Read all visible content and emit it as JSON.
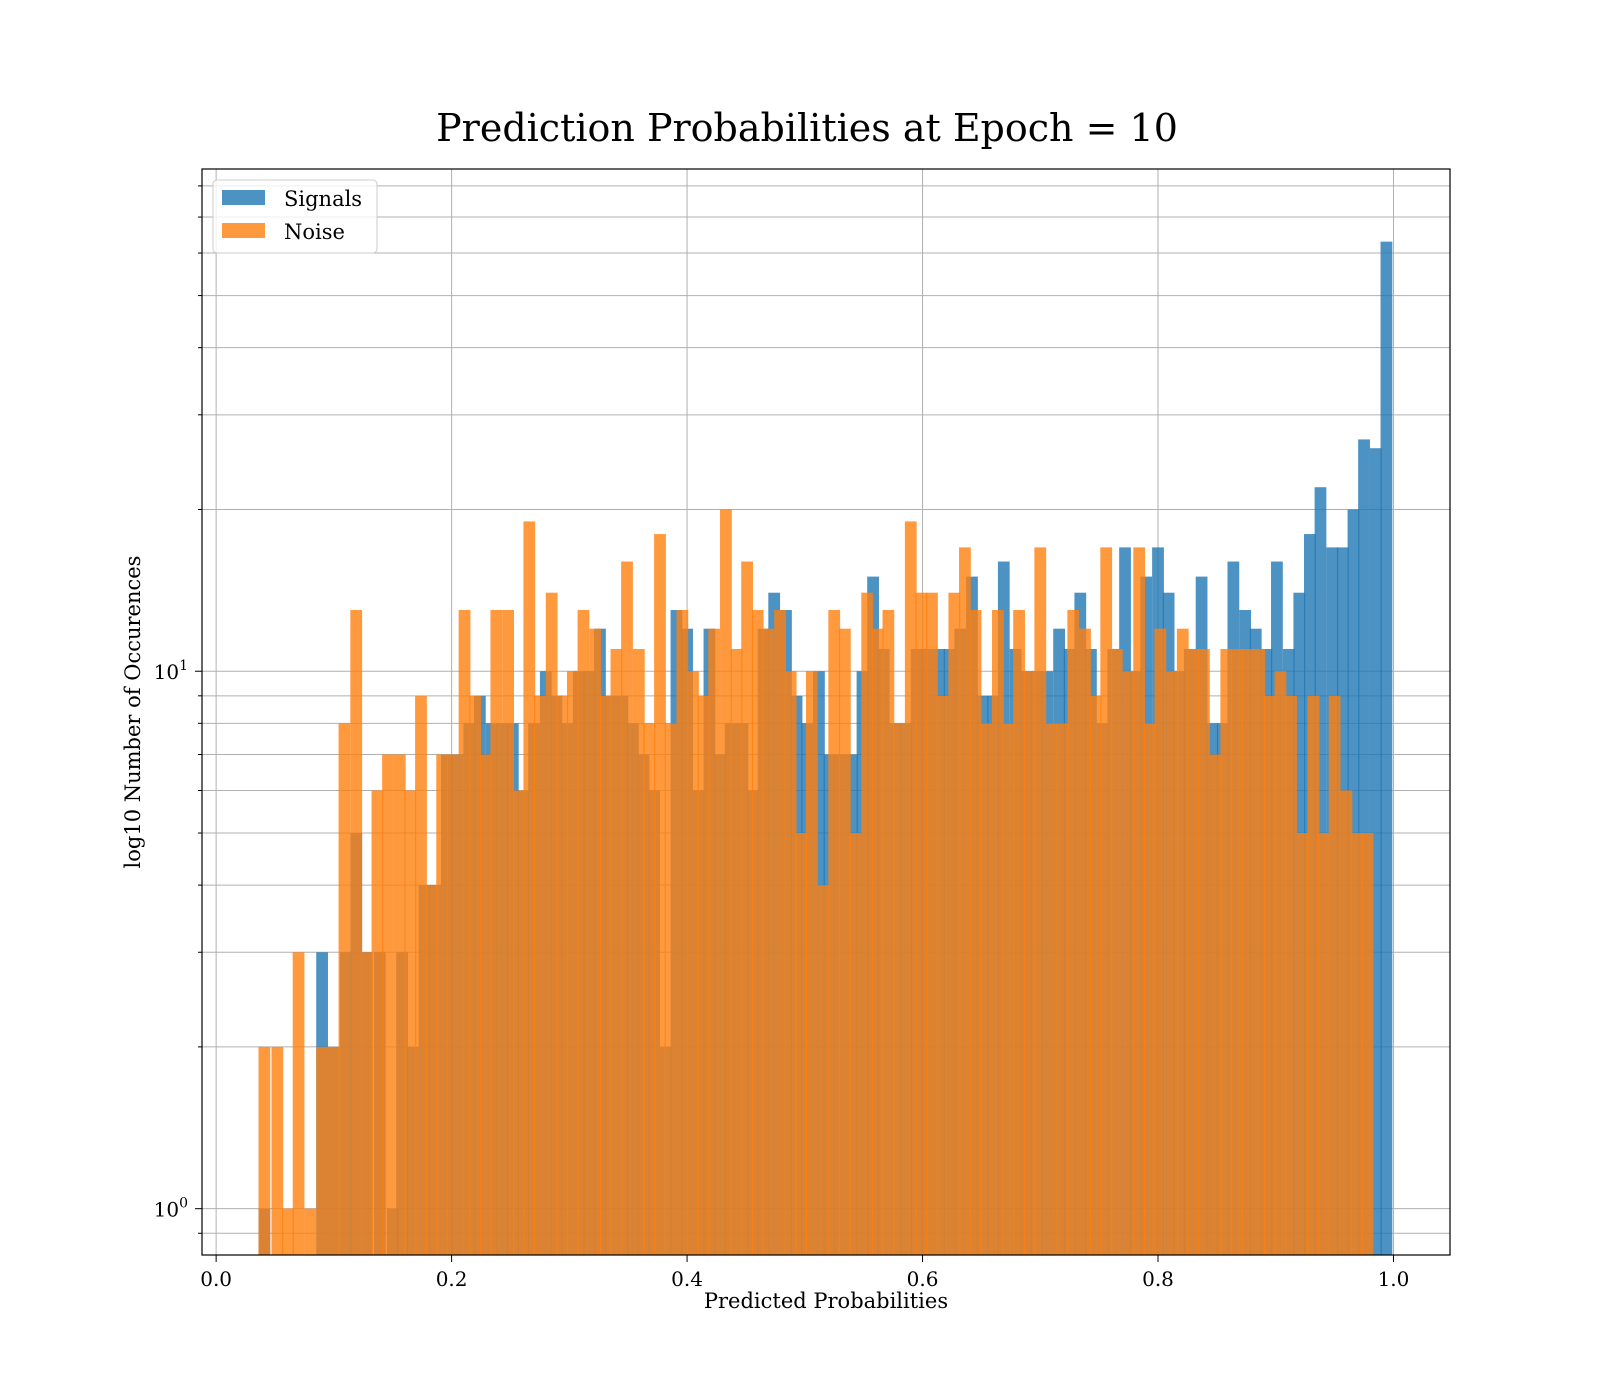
{
  "chart_data": {
    "type": "bar",
    "title": "Prediction Probabilities at Epoch = 10",
    "xlabel": "Predicted Probabilities",
    "ylabel": "log10 Number of Occurences",
    "xlim": [
      -0.012,
      1.048
    ],
    "ylim": [
      0.82,
      86
    ],
    "yscale": "log",
    "grid": true,
    "legend_position": "top-left",
    "bin_width": 0.01,
    "x_ticks": [
      "0.0",
      "0.2",
      "0.4",
      "0.6",
      "0.8",
      "1.0"
    ],
    "x_tick_values": [
      0.0,
      0.2,
      0.4,
      0.6,
      0.8,
      1.0
    ],
    "y_ticks": [
      {
        "value": 1,
        "base": "10",
        "exp": "0"
      },
      {
        "value": 10,
        "base": "10",
        "exp": "1"
      }
    ],
    "series": [
      {
        "name": "Signals",
        "color": "#1f77b4",
        "alpha": 0.8,
        "bins": [
          [
            0.036,
            1
          ],
          [
            0.085,
            3
          ],
          [
            0.095,
            2
          ],
          [
            0.105,
            3
          ],
          [
            0.114,
            5
          ],
          [
            0.123,
            3
          ],
          [
            0.134,
            3
          ],
          [
            0.145,
            1
          ],
          [
            0.153,
            3
          ],
          [
            0.162,
            2
          ],
          [
            0.172,
            4
          ],
          [
            0.181,
            4
          ],
          [
            0.191,
            7
          ],
          [
            0.2,
            7
          ],
          [
            0.21,
            8
          ],
          [
            0.219,
            9
          ],
          [
            0.229,
            8
          ],
          [
            0.238,
            8
          ],
          [
            0.247,
            8
          ],
          [
            0.256,
            6
          ],
          [
            0.265,
            8
          ],
          [
            0.275,
            10
          ],
          [
            0.284,
            9
          ],
          [
            0.293,
            8
          ],
          [
            0.303,
            10
          ],
          [
            0.312,
            10
          ],
          [
            0.321,
            12
          ],
          [
            0.33,
            9
          ],
          [
            0.34,
            9
          ],
          [
            0.349,
            8
          ],
          [
            0.358,
            7
          ],
          [
            0.367,
            6
          ],
          [
            0.377,
            2
          ],
          [
            0.386,
            13
          ],
          [
            0.395,
            12
          ],
          [
            0.405,
            6
          ],
          [
            0.414,
            12
          ],
          [
            0.423,
            7
          ],
          [
            0.432,
            8
          ],
          [
            0.442,
            8
          ],
          [
            0.451,
            6
          ],
          [
            0.46,
            12
          ],
          [
            0.469,
            14
          ],
          [
            0.479,
            13
          ],
          [
            0.488,
            9
          ],
          [
            0.497,
            8
          ],
          [
            0.507,
            10
          ],
          [
            0.516,
            7
          ],
          [
            0.525,
            7
          ],
          [
            0.535,
            7
          ],
          [
            0.544,
            10
          ],
          [
            0.553,
            15
          ],
          [
            0.562,
            11
          ],
          [
            0.572,
            8
          ],
          [
            0.581,
            8
          ],
          [
            0.59,
            11
          ],
          [
            0.599,
            11
          ],
          [
            0.609,
            11
          ],
          [
            0.618,
            11
          ],
          [
            0.627,
            12
          ],
          [
            0.637,
            15
          ],
          [
            0.646,
            9
          ],
          [
            0.655,
            9
          ],
          [
            0.664,
            16
          ],
          [
            0.674,
            11
          ],
          [
            0.683,
            10
          ],
          [
            0.692,
            10
          ],
          [
            0.701,
            10
          ],
          [
            0.711,
            12
          ],
          [
            0.72,
            11
          ],
          [
            0.729,
            14
          ],
          [
            0.738,
            11
          ],
          [
            0.748,
            8
          ],
          [
            0.757,
            11
          ],
          [
            0.767,
            17
          ],
          [
            0.776,
            10
          ],
          [
            0.785,
            15
          ],
          [
            0.795,
            17
          ],
          [
            0.804,
            14
          ],
          [
            0.813,
            10
          ],
          [
            0.822,
            11
          ],
          [
            0.832,
            15
          ],
          [
            0.841,
            8
          ],
          [
            0.85,
            8
          ],
          [
            0.859,
            16
          ],
          [
            0.869,
            13
          ],
          [
            0.878,
            12
          ],
          [
            0.887,
            11
          ],
          [
            0.896,
            16
          ],
          [
            0.906,
            11
          ],
          [
            0.915,
            14
          ],
          [
            0.924,
            18
          ],
          [
            0.933,
            22
          ],
          [
            0.943,
            17
          ],
          [
            0.952,
            17
          ],
          [
            0.961,
            20
          ],
          [
            0.97,
            27
          ],
          [
            0.98,
            26
          ],
          [
            0.989,
            63
          ]
        ]
      },
      {
        "name": "Noise",
        "color": "#ff7f0e",
        "alpha": 0.8,
        "bins": [
          [
            0.036,
            2
          ],
          [
            0.047,
            2
          ],
          [
            0.056,
            1
          ],
          [
            0.065,
            3
          ],
          [
            0.075,
            1
          ],
          [
            0.085,
            2
          ],
          [
            0.095,
            2
          ],
          [
            0.104,
            8
          ],
          [
            0.114,
            13
          ],
          [
            0.123,
            3
          ],
          [
            0.132,
            6
          ],
          [
            0.141,
            7
          ],
          [
            0.151,
            7
          ],
          [
            0.16,
            6
          ],
          [
            0.169,
            9
          ],
          [
            0.178,
            4
          ],
          [
            0.187,
            7
          ],
          [
            0.196,
            7
          ],
          [
            0.206,
            13
          ],
          [
            0.215,
            9
          ],
          [
            0.224,
            7
          ],
          [
            0.233,
            13
          ],
          [
            0.243,
            13
          ],
          [
            0.252,
            6
          ],
          [
            0.261,
            19
          ],
          [
            0.27,
            9
          ],
          [
            0.28,
            14
          ],
          [
            0.289,
            9
          ],
          [
            0.298,
            10
          ],
          [
            0.307,
            13
          ],
          [
            0.317,
            12
          ],
          [
            0.326,
            9
          ],
          [
            0.335,
            11
          ],
          [
            0.344,
            16
          ],
          [
            0.354,
            11
          ],
          [
            0.363,
            8
          ],
          [
            0.372,
            18
          ],
          [
            0.381,
            8
          ],
          [
            0.391,
            13
          ],
          [
            0.4,
            10
          ],
          [
            0.409,
            9
          ],
          [
            0.418,
            12
          ],
          [
            0.428,
            20
          ],
          [
            0.437,
            11
          ],
          [
            0.446,
            16
          ],
          [
            0.455,
            13
          ],
          [
            0.464,
            12
          ],
          [
            0.474,
            13
          ],
          [
            0.483,
            10
          ],
          [
            0.492,
            5
          ],
          [
            0.501,
            10
          ],
          [
            0.511,
            4
          ],
          [
            0.52,
            13
          ],
          [
            0.529,
            12
          ],
          [
            0.538,
            5
          ],
          [
            0.548,
            14
          ],
          [
            0.557,
            12
          ],
          [
            0.566,
            13
          ],
          [
            0.575,
            8
          ],
          [
            0.585,
            19
          ],
          [
            0.594,
            14
          ],
          [
            0.603,
            14
          ],
          [
            0.612,
            9
          ],
          [
            0.622,
            14
          ],
          [
            0.631,
            17
          ],
          [
            0.64,
            13
          ],
          [
            0.649,
            8
          ],
          [
            0.659,
            13
          ],
          [
            0.668,
            8
          ],
          [
            0.677,
            13
          ],
          [
            0.686,
            10
          ],
          [
            0.695,
            17
          ],
          [
            0.705,
            8
          ],
          [
            0.714,
            8
          ],
          [
            0.723,
            13
          ],
          [
            0.733,
            12
          ],
          [
            0.742,
            9
          ],
          [
            0.751,
            17
          ],
          [
            0.76,
            11
          ],
          [
            0.77,
            10
          ],
          [
            0.779,
            17
          ],
          [
            0.788,
            8
          ],
          [
            0.797,
            12
          ],
          [
            0.807,
            10
          ],
          [
            0.816,
            12
          ],
          [
            0.825,
            11
          ],
          [
            0.834,
            11
          ],
          [
            0.844,
            7
          ],
          [
            0.853,
            11
          ],
          [
            0.862,
            11
          ],
          [
            0.871,
            11
          ],
          [
            0.881,
            11
          ],
          [
            0.89,
            9
          ],
          [
            0.899,
            10
          ],
          [
            0.908,
            9
          ],
          [
            0.918,
            5
          ],
          [
            0.927,
            9
          ],
          [
            0.936,
            5
          ],
          [
            0.945,
            9
          ],
          [
            0.955,
            6
          ],
          [
            0.964,
            5
          ],
          [
            0.973,
            5
          ]
        ]
      }
    ]
  }
}
